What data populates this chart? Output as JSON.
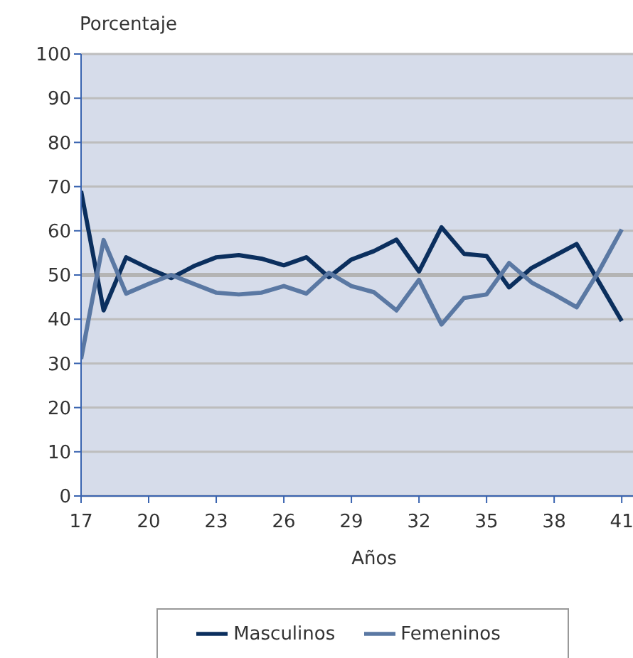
{
  "chart_data": {
    "type": "line",
    "xlabel": "Años",
    "ylabel": "Porcentaje",
    "x": [
      17,
      18,
      19,
      20,
      21,
      22,
      23,
      24,
      25,
      26,
      27,
      28,
      29,
      30,
      31,
      32,
      33,
      34,
      35,
      36,
      37,
      38,
      39,
      40,
      41
    ],
    "series": [
      {
        "name": "Masculinos",
        "color": "#0b2f5e",
        "values": [
          69,
          42,
          54,
          51.5,
          49.3,
          52,
          54,
          54.5,
          53.7,
          52.2,
          54,
          49.5,
          53.5,
          55.4,
          58,
          50.8,
          60.8,
          54.8,
          54.3,
          47.2,
          51.6,
          54.3,
          57,
          48.3,
          39.6
        ]
      },
      {
        "name": "Femeninos",
        "color": "#5a78a3",
        "values": [
          31,
          57.9,
          45.8,
          48,
          50,
          48,
          46,
          45.6,
          46,
          47.5,
          45.8,
          50.5,
          47.5,
          46.1,
          42,
          48.9,
          38.8,
          44.8,
          45.6,
          52.7,
          48.3,
          45.6,
          42.7,
          51,
          60.3
        ]
      }
    ],
    "xlim": [
      17,
      41.5
    ],
    "xticks": [
      17,
      20,
      23,
      26,
      29,
      32,
      35,
      38,
      41
    ],
    "ylim": [
      0,
      100
    ],
    "yticks": [
      0,
      10,
      20,
      30,
      40,
      50,
      60,
      70,
      80,
      90,
      100
    ],
    "ref_lines": [
      {
        "axis": "y",
        "value": 50,
        "color": "#b4b4b4"
      }
    ],
    "grid": "y",
    "legend": "bottom",
    "marker": "none",
    "line_style": "solid"
  }
}
